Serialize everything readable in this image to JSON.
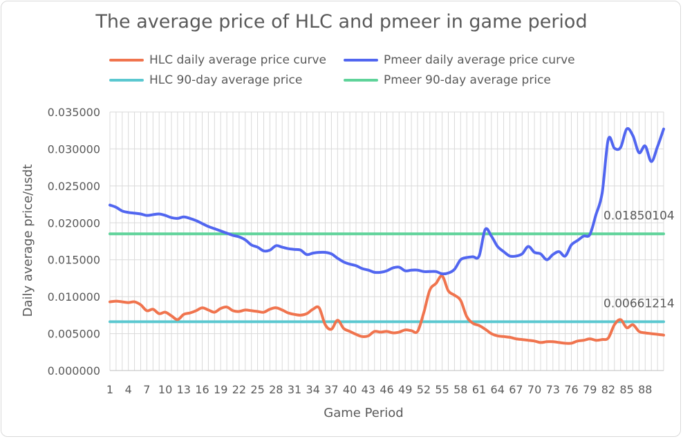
{
  "chart_data": {
    "type": "line",
    "title": "The average price of HLC and pmeer in game period",
    "xlabel": "Game Period",
    "ylabel": "Daily average price/usdt",
    "ylim": [
      0,
      0.035
    ],
    "y_ticks": [
      "0.000000",
      "0.005000",
      "0.010000",
      "0.015000",
      "0.020000",
      "0.025000",
      "0.030000",
      "0.035000"
    ],
    "x_tick_labels": [
      "1",
      "4",
      "7",
      "10",
      "13",
      "16",
      "19",
      "22",
      "25",
      "28",
      "31",
      "34",
      "37",
      "40",
      "43",
      "46",
      "49",
      "52",
      "55",
      "58",
      "61",
      "64",
      "67",
      "70",
      "73",
      "76",
      "79",
      "82",
      "85",
      "88"
    ],
    "x_range": [
      1,
      91
    ],
    "grid": true,
    "legend_position": "top",
    "series": [
      {
        "name": "HLC daily average price curve",
        "color": "#f0744e",
        "values": [
          0.0093,
          0.0094,
          0.0093,
          0.0092,
          0.0093,
          0.0089,
          0.0081,
          0.0083,
          0.0077,
          0.0079,
          0.0074,
          0.0069,
          0.0076,
          0.0078,
          0.0081,
          0.0085,
          0.0082,
          0.0079,
          0.0084,
          0.0086,
          0.0081,
          0.008,
          0.0082,
          0.0081,
          0.008,
          0.0079,
          0.0083,
          0.0085,
          0.0082,
          0.0078,
          0.0076,
          0.0075,
          0.0077,
          0.0083,
          0.0085,
          0.0062,
          0.0056,
          0.0068,
          0.0057,
          0.0053,
          0.0049,
          0.0046,
          0.0047,
          0.0053,
          0.0052,
          0.0053,
          0.0051,
          0.0052,
          0.0055,
          0.0054,
          0.0053,
          0.0078,
          0.0109,
          0.0118,
          0.0128,
          0.0108,
          0.0102,
          0.0095,
          0.0073,
          0.0064,
          0.0061,
          0.0056,
          0.005,
          0.0047,
          0.0046,
          0.0045,
          0.0043,
          0.0042,
          0.0041,
          0.004,
          0.0038,
          0.0039,
          0.0039,
          0.0038,
          0.0037,
          0.0037,
          0.004,
          0.0041,
          0.0043,
          0.0041,
          0.0042,
          0.0044,
          0.0062,
          0.0069,
          0.0058,
          0.0062,
          0.0053,
          0.0051,
          0.005,
          0.0049,
          0.0048
        ]
      },
      {
        "name": "Pmeer daily average price curve",
        "color": "#5166f0",
        "values": [
          0.0224,
          0.0221,
          0.0216,
          0.0214,
          0.0213,
          0.0212,
          0.021,
          0.0211,
          0.0212,
          0.021,
          0.0207,
          0.0206,
          0.0208,
          0.0206,
          0.0203,
          0.0199,
          0.0195,
          0.0192,
          0.0189,
          0.0186,
          0.0183,
          0.0181,
          0.0177,
          0.017,
          0.0167,
          0.0162,
          0.0163,
          0.0169,
          0.0167,
          0.0165,
          0.0164,
          0.0163,
          0.0157,
          0.0159,
          0.016,
          0.016,
          0.0158,
          0.0152,
          0.0147,
          0.0144,
          0.0142,
          0.0138,
          0.0136,
          0.0133,
          0.0133,
          0.0135,
          0.0139,
          0.014,
          0.0135,
          0.0136,
          0.0136,
          0.0134,
          0.0134,
          0.0134,
          0.0131,
          0.0132,
          0.0137,
          0.015,
          0.0153,
          0.0154,
          0.0155,
          0.0191,
          0.0182,
          0.0168,
          0.0161,
          0.0155,
          0.0155,
          0.0158,
          0.0168,
          0.016,
          0.0158,
          0.015,
          0.0157,
          0.0161,
          0.0155,
          0.017,
          0.0176,
          0.0182,
          0.0184,
          0.0211,
          0.024,
          0.0313,
          0.0301,
          0.0302,
          0.0327,
          0.0318,
          0.0295,
          0.0304,
          0.0283,
          0.0303,
          0.0327
        ]
      },
      {
        "name": "HLC 90-day average price",
        "color": "#5bc8d0",
        "value": 0.00661214,
        "label": "0.00661214"
      },
      {
        "name": "Pmeer 90-day average price",
        "color": "#5fd39a",
        "value": 0.01850104,
        "label": "0.01850104"
      }
    ]
  }
}
